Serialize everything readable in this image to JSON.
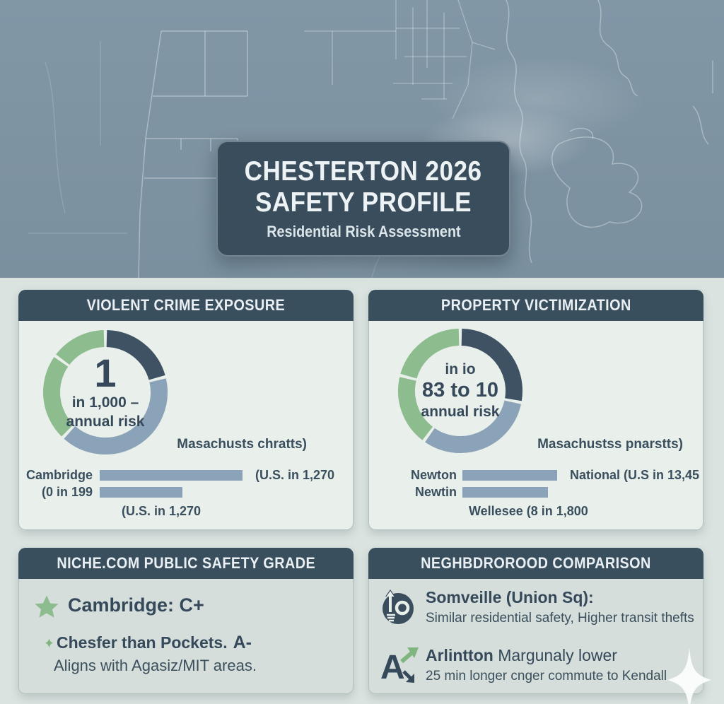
{
  "header_card": {
    "line1": "CHESTERTON 2026",
    "line2": "SAFETY PROFILE",
    "subtitle": "Residential Risk Assessment"
  },
  "colors": {
    "map_background": "#7E93A2",
    "panel_header": "#3A4F5E",
    "card_background": "#E9EFEA",
    "card_background_alt": "#D5DEDB",
    "dark_slate": "#3E5263",
    "steel_blue": "#8BA3B8",
    "green": "#8DBC8E",
    "text_dark": "#35495A",
    "sparkle": "#FFFFFF"
  },
  "panels": {
    "violent_crime": {
      "header": "VIOLENT CRIME EXPOSURE",
      "side_label": "Masachusts chratts)"
    },
    "property": {
      "header": "PROPERTY VICTIMIZATION",
      "side_label": "Masachustss pnarstts)"
    },
    "niche": {
      "header": "NICHE.COM PUBLIC SAFETY GRADE",
      "grade_line": "Cambridge: C+",
      "note_line": "Chesfer than Pockets.",
      "note_grade": "A-",
      "detail_line": "Aligns with Agasiz/MIT areas."
    },
    "neighborhood": {
      "header": "NEGHBDROROOD COMPARISON",
      "items": [
        {
          "icon": "transit-up-icon",
          "title": "Somveille (Union Sq):",
          "subtitle": "Similar residential safety, Higher transit thefts"
        },
        {
          "icon": "translate-a-icon",
          "title_bold": "Arlintton",
          "title_rest": " Margunaly lower",
          "subtitle": "25 min longer cnger commute to Kendall"
        }
      ]
    }
  },
  "chart_data": [
    {
      "type": "pie",
      "variant": "donut",
      "panel": "violent_crime",
      "center": {
        "line1": "1",
        "line2": "in 1,000 –",
        "line3": "annual risk"
      },
      "segments": [
        {
          "label": "dark-segment",
          "value": 21,
          "color": "#3E5263"
        },
        {
          "label": "steel-segment",
          "value": 41,
          "color": "#8BA3B8"
        },
        {
          "label": "green-segment-a",
          "value": 23,
          "color": "#8DBC8E"
        },
        {
          "label": "green-segment-b",
          "value": 15,
          "color": "#8DBC8E"
        }
      ]
    },
    {
      "type": "bar",
      "panel": "violent_crime",
      "bar_color": "#8BA3B8",
      "bars": [
        {
          "label": "Cambridge",
          "value": 1.0,
          "right_label": "(U.S. in 1,270"
        },
        {
          "label": "(0 in 199",
          "value": 0.58,
          "right_label": ""
        }
      ],
      "footnote": "(U.S. in 1,270"
    },
    {
      "type": "pie",
      "variant": "donut",
      "panel": "property",
      "center": {
        "line1": "in io",
        "line2": "83 to 10",
        "line3": "annual risk"
      },
      "segments": [
        {
          "label": "dark-segment",
          "value": 28,
          "color": "#3E5263"
        },
        {
          "label": "steel-segment",
          "value": 32,
          "color": "#8BA3B8"
        },
        {
          "label": "green-segment-a",
          "value": 19,
          "color": "#8DBC8E"
        },
        {
          "label": "green-segment-b",
          "value": 21,
          "color": "#8DBC8E"
        }
      ]
    },
    {
      "type": "bar",
      "panel": "property",
      "bar_color": "#8BA3B8",
      "bars": [
        {
          "label": "Newton",
          "value": 1.0,
          "right_label": "National (U.S in 13,45"
        },
        {
          "label": "Newtin",
          "value": 0.9,
          "right_label": ""
        }
      ],
      "footnote": "Wellesee (8 in 1,800"
    }
  ]
}
